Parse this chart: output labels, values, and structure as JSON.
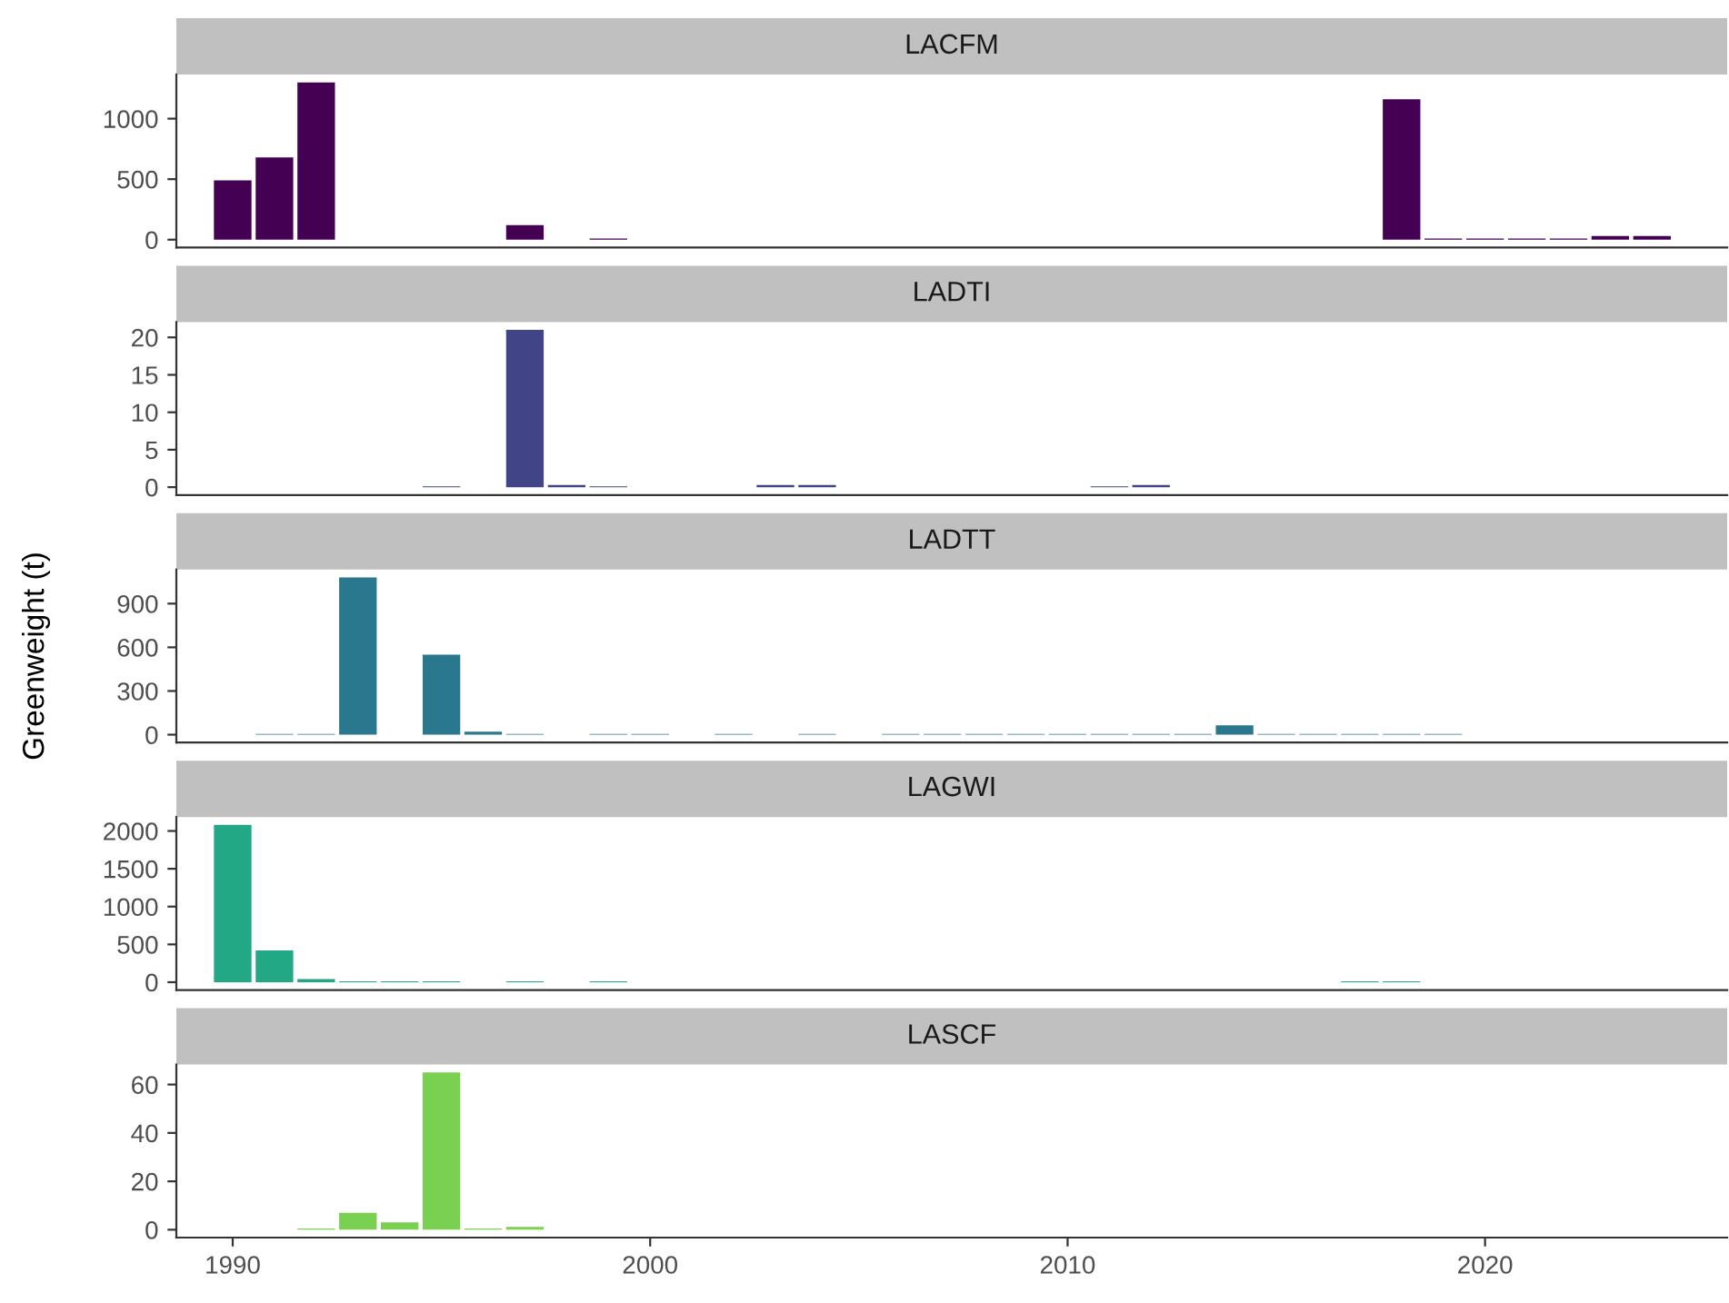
{
  "chart_data": [
    {
      "type": "bar",
      "title": "LACFM",
      "x": [
        1990,
        1991,
        1992,
        1997,
        1999,
        2018,
        2019,
        2020,
        2021,
        2022,
        2023,
        2024
      ],
      "values": [
        490,
        680,
        1300,
        120,
        10,
        1160,
        10,
        10,
        10,
        10,
        30,
        30
      ],
      "color": "#440154",
      "xlim": [
        1988.65,
        2025.8
      ],
      "ylim": [
        -65,
        1365
      ],
      "yticks": [
        0,
        500,
        1000
      ],
      "tick_labels": "y",
      "grid": false
    },
    {
      "type": "bar",
      "title": "LADTI",
      "x": [
        1995,
        1997,
        1998,
        1999,
        2003,
        2004,
        2011,
        2012
      ],
      "values": [
        0.1,
        21,
        0.3,
        0.1,
        0.3,
        0.3,
        0.1,
        0.3
      ],
      "color": "#414487",
      "xlim": [
        1988.65,
        2025.8
      ],
      "ylim": [
        -1.05,
        22.05
      ],
      "yticks": [
        0,
        5,
        10,
        15,
        20
      ],
      "tick_labels": "y",
      "grid": false
    },
    {
      "type": "bar",
      "title": "LADTT",
      "ylabel": "Greenweight (t)",
      "x": [
        1991,
        1992,
        1993,
        1995,
        1996,
        1997,
        1999,
        2000,
        2002,
        2004,
        2006,
        2007,
        2008,
        2009,
        2010,
        2011,
        2012,
        2013,
        2014,
        2015,
        2016,
        2017,
        2018,
        2019
      ],
      "values": [
        5,
        5,
        1080,
        550,
        20,
        5,
        5,
        5,
        5,
        5,
        5,
        5,
        5,
        5,
        5,
        5,
        5,
        5,
        65,
        5,
        5,
        5,
        5,
        5
      ],
      "color": "#2a788e",
      "xlim": [
        1988.65,
        2025.8
      ],
      "ylim": [
        -54,
        1134
      ],
      "yticks": [
        0,
        300,
        600,
        900
      ],
      "tick_labels": "y",
      "grid": false
    },
    {
      "type": "bar",
      "title": "LAGWI",
      "x": [
        1990,
        1991,
        1992,
        1993,
        1994,
        1995,
        1997,
        1999,
        2017,
        2018
      ],
      "values": [
        2080,
        420,
        40,
        10,
        10,
        10,
        10,
        10,
        10,
        10
      ],
      "color": "#22a884",
      "xlim": [
        1988.65,
        2025.8
      ],
      "ylim": [
        -104,
        2184
      ],
      "yticks": [
        0,
        500,
        1000,
        1500,
        2000
      ],
      "tick_labels": "y",
      "grid": false
    },
    {
      "type": "bar",
      "title": "LASCF",
      "x": [
        1992,
        1993,
        1994,
        1995,
        1996,
        1997
      ],
      "values": [
        0.5,
        7,
        3,
        65,
        0.5,
        1.2
      ],
      "color": "#7ad151",
      "xlim": [
        1988.65,
        2025.8
      ],
      "ylim": [
        -3.25,
        68.25
      ],
      "yticks": [
        0,
        20,
        40,
        60
      ],
      "xticks": [
        1990,
        2000,
        2010,
        2020
      ],
      "grid": false
    }
  ]
}
